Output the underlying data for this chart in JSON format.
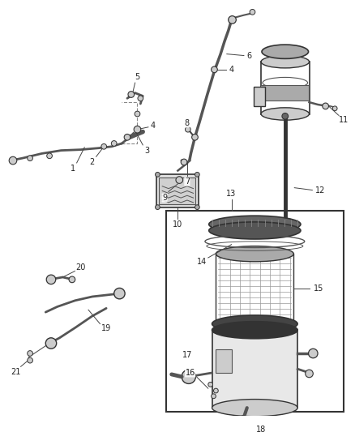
{
  "bg_color": "#ffffff",
  "fig_width": 4.38,
  "fig_height": 5.33,
  "dpi": 100,
  "lc": "#555555",
  "lc2": "#333333",
  "fs": 7.0,
  "gray1": "#888888",
  "gray2": "#aaaaaa",
  "gray3": "#cccccc",
  "gray4": "#666666",
  "gray5": "#999999",
  "darkgray": "#444444"
}
